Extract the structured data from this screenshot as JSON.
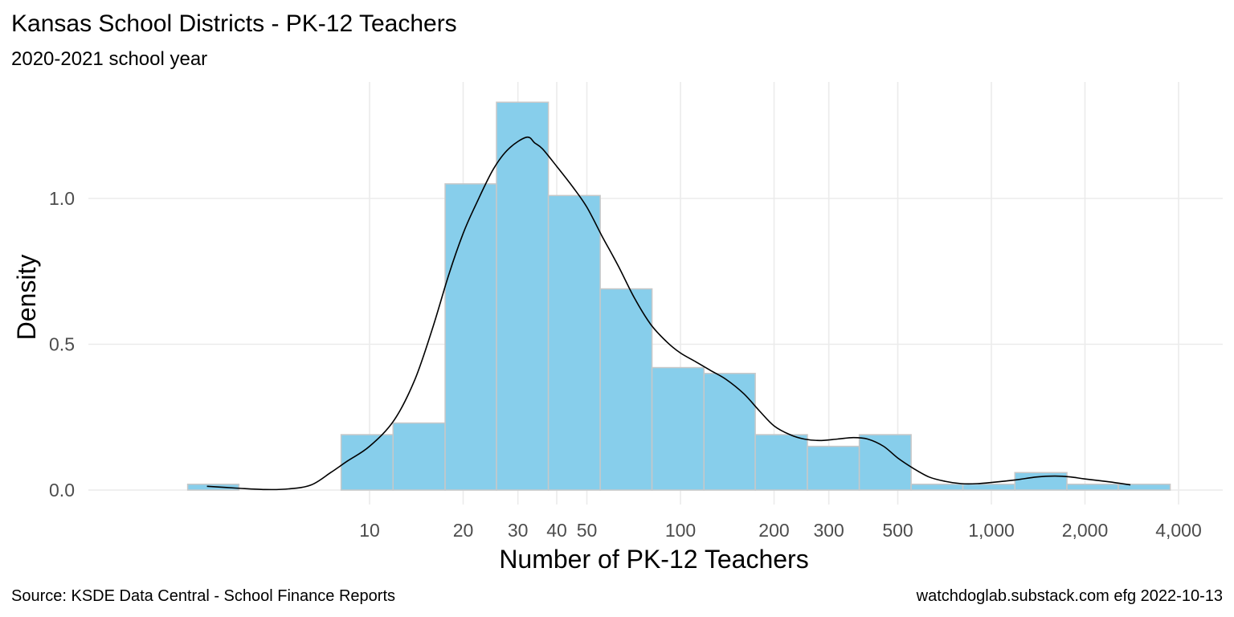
{
  "chart_data": {
    "type": "bar",
    "title": "Kansas School Districts - PK-12 Teachers",
    "subtitle": "2020-2021 school year",
    "xlabel": "Number of PK-12 Teachers",
    "ylabel": "Density",
    "x_scale": "log10",
    "xlim": [
      2.6,
      5100
    ],
    "ylim": [
      0,
      1.32
    ],
    "x_ticks": [
      {
        "value": 10,
        "label": "10"
      },
      {
        "value": 20,
        "label": "20"
      },
      {
        "value": 30,
        "label": "30"
      },
      {
        "value": 40,
        "label": "40"
      },
      {
        "value": 50,
        "label": "50"
      },
      {
        "value": 100,
        "label": "100"
      },
      {
        "value": 200,
        "label": "200"
      },
      {
        "value": 300,
        "label": "300"
      },
      {
        "value": 500,
        "label": "500"
      },
      {
        "value": 1000,
        "label": "1,000"
      },
      {
        "value": 2000,
        "label": "2,000"
      },
      {
        "value": 4000,
        "label": "4,000"
      }
    ],
    "y_ticks": [
      {
        "value": 0,
        "label": "0.0"
      },
      {
        "value": 0.5,
        "label": "0.5"
      },
      {
        "value": 1,
        "label": "1.0"
      }
    ],
    "bars": [
      {
        "x0": 2.6,
        "x1": 3.8,
        "density": 0.02
      },
      {
        "x0": 8.1,
        "x1": 11.9,
        "density": 0.19
      },
      {
        "x0": 11.9,
        "x1": 17.5,
        "density": 0.23
      },
      {
        "x0": 17.5,
        "x1": 25.6,
        "density": 1.05
      },
      {
        "x0": 25.6,
        "x1": 37.6,
        "density": 1.33
      },
      {
        "x0": 37.6,
        "x1": 55.2,
        "density": 1.01
      },
      {
        "x0": 55.2,
        "x1": 81.0,
        "density": 0.69
      },
      {
        "x0": 81.0,
        "x1": 119,
        "density": 0.42
      },
      {
        "x0": 119,
        "x1": 174,
        "density": 0.4
      },
      {
        "x0": 174,
        "x1": 256,
        "density": 0.19
      },
      {
        "x0": 256,
        "x1": 376,
        "density": 0.15
      },
      {
        "x0": 376,
        "x1": 552,
        "density": 0.19
      },
      {
        "x0": 552,
        "x1": 810,
        "density": 0.02
      },
      {
        "x0": 810,
        "x1": 1190,
        "density": 0.02
      },
      {
        "x0": 1190,
        "x1": 1750,
        "density": 0.06
      },
      {
        "x0": 1750,
        "x1": 2560,
        "density": 0.02
      },
      {
        "x0": 2560,
        "x1": 3760,
        "density": 0.02
      }
    ],
    "density_curve": {
      "x": [
        3.0,
        3.7,
        4.6,
        5.5,
        6.5,
        7.5,
        8.5,
        10,
        12,
        14,
        16,
        18,
        20,
        22,
        25,
        28,
        32,
        34,
        36,
        40,
        45,
        50,
        56,
        63,
        71,
        80,
        90,
        100,
        112,
        125,
        140,
        160,
        180,
        200,
        225,
        250,
        280,
        320,
        360,
        400,
        450,
        500,
        560,
        630,
        710,
        800,
        900,
        1000,
        1200,
        1400,
        1600,
        1800,
        2000,
        2400,
        2800
      ],
      "y": [
        0.013,
        0.007,
        0.002,
        0.004,
        0.018,
        0.06,
        0.1,
        0.15,
        0.24,
        0.38,
        0.56,
        0.74,
        0.88,
        0.98,
        1.1,
        1.17,
        1.21,
        1.19,
        1.17,
        1.11,
        1.04,
        0.97,
        0.87,
        0.77,
        0.66,
        0.57,
        0.51,
        0.47,
        0.44,
        0.41,
        0.38,
        0.33,
        0.27,
        0.22,
        0.19,
        0.175,
        0.17,
        0.175,
        0.18,
        0.175,
        0.15,
        0.11,
        0.075,
        0.045,
        0.03,
        0.022,
        0.022,
        0.026,
        0.035,
        0.045,
        0.048,
        0.045,
        0.038,
        0.028,
        0.018
      ]
    },
    "colors": {
      "bar_fill": "#87CEEB",
      "bar_stroke": "#c8c8c8",
      "curve": "#000000",
      "grid": "#ebebeb"
    },
    "grid": true,
    "legend": "none"
  },
  "caption": {
    "source": "Source:  KSDE Data Central - School Finance Reports",
    "credit": "watchdoglab.substack.com  efg 2022-10-13"
  }
}
